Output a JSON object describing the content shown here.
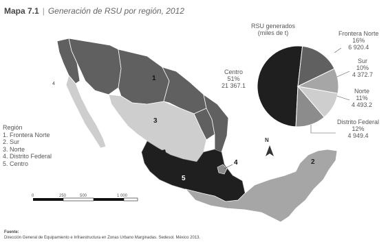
{
  "header": {
    "map_label": "Mapa 7.1",
    "separator": "|",
    "title": "Generación de RSU por región, 2012"
  },
  "legend": {
    "title": "Región",
    "items": [
      {
        "label": "1. Frontera Norte",
        "color": "#606060"
      },
      {
        "label": "2. Sur",
        "color": "#a6a6a6"
      },
      {
        "label": "3. Norte",
        "color": "#cecece"
      },
      {
        "label": "4. Distrito Federal",
        "color": "#8c8c8c"
      },
      {
        "label": "5. Centro",
        "color": "#1f1f1f"
      }
    ]
  },
  "map": {
    "region_numbers": [
      "1",
      "2",
      "3",
      "4",
      "5"
    ],
    "north_label": "N",
    "scale_ticks": [
      "0",
      "250",
      "500",
      "",
      "1 000"
    ]
  },
  "pie": {
    "title_line1": "RSU generados",
    "title_line2": "(miles de t)",
    "slices": [
      {
        "name": "Centro",
        "percent": "51%",
        "value": "21 367.1",
        "share": 0.51,
        "color": "#1f1f1f"
      },
      {
        "name": "Frontera Norte",
        "percent": "16%",
        "value": "6 920.4",
        "share": 0.16,
        "color": "#606060"
      },
      {
        "name": "Sur",
        "percent": "10%",
        "value": "4 372.7",
        "share": 0.1,
        "color": "#a6a6a6"
      },
      {
        "name": "Norte",
        "percent": "11%",
        "value": "4 493.2",
        "share": 0.11,
        "color": "#cecece"
      },
      {
        "name": "Distrito Federal",
        "percent": "12%",
        "value": "4 949.4",
        "share": 0.12,
        "color": "#8c8c8c"
      }
    ]
  },
  "source": {
    "label": "Fuente:",
    "text": "Dirección General de Equipamiento e Infraestructura en Zonas Urbano Marginadas. Sedesol. México 2013."
  }
}
